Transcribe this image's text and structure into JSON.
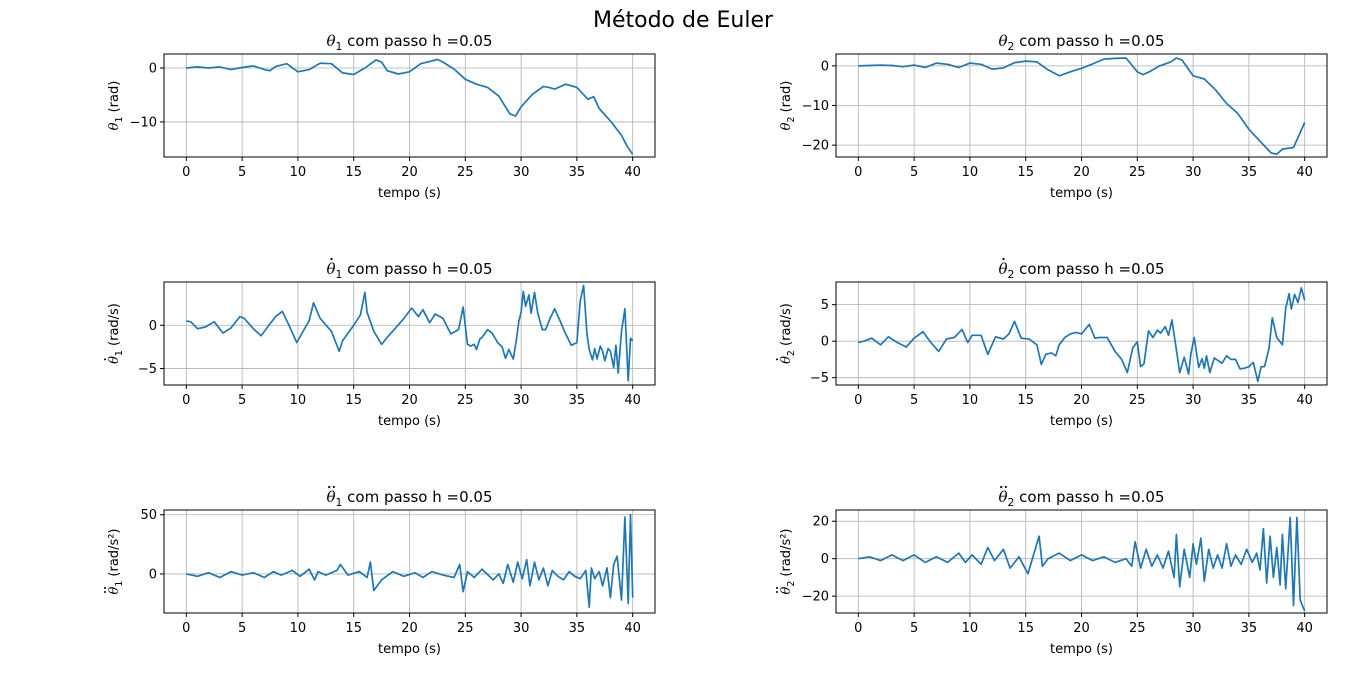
{
  "figure": {
    "suptitle": "Método de Euler"
  },
  "chart_data": [
    {
      "id": "theta1",
      "type": "line",
      "title": {
        "sym": "θ",
        "sub": "1",
        "dots": 0,
        "rest": " com passo h =0.05"
      },
      "ylabel": {
        "sym": "θ",
        "sub": "1",
        "dots": 0,
        "rest": " (rad)"
      },
      "xlabel": "tempo (s)",
      "xlim": [
        -2,
        42
      ],
      "ylim": [
        -16.5,
        2.6
      ],
      "xticks": [
        0,
        5,
        10,
        15,
        20,
        25,
        30,
        35,
        40
      ],
      "yticks": [
        0,
        -10
      ],
      "grid": true,
      "color": "#1f77b4",
      "x": [
        0,
        1,
        2,
        3,
        4,
        5,
        6,
        7,
        7.5,
        8,
        9,
        10,
        11,
        12,
        13,
        14,
        15,
        16,
        17,
        17.5,
        18,
        19,
        20,
        21,
        22,
        22.5,
        23,
        24,
        25,
        26,
        27,
        28,
        29,
        29.5,
        30,
        31,
        32,
        32.5,
        33,
        34,
        35,
        36,
        36.5,
        37,
        38,
        39,
        39.5,
        40
      ],
      "values": [
        0,
        0.2,
        0,
        0.2,
        -0.3,
        0.1,
        0.4,
        -0.3,
        -0.5,
        0.3,
        0.8,
        -0.7,
        -0.3,
        0.9,
        0.8,
        -0.9,
        -1.2,
        0,
        1.5,
        1.1,
        -0.5,
        -1.1,
        -0.7,
        0.8,
        1.3,
        1.6,
        1.1,
        -0.2,
        -2.1,
        -3,
        -3.6,
        -5.2,
        -8.5,
        -8.9,
        -7.2,
        -4.9,
        -3.4,
        -3.6,
        -3.9,
        -3,
        -3.6,
        -5.8,
        -5.3,
        -7.5,
        -9.8,
        -12.5,
        -14.5,
        -16
      ]
    },
    {
      "id": "theta2",
      "type": "line",
      "title": {
        "sym": "θ",
        "sub": "2",
        "dots": 0,
        "rest": " com passo h =0.05"
      },
      "ylabel": {
        "sym": "θ",
        "sub": "2",
        "dots": 0,
        "rest": " (rad)"
      },
      "xlabel": "tempo (s)",
      "xlim": [
        -2,
        42
      ],
      "ylim": [
        -23,
        3
      ],
      "xticks": [
        0,
        5,
        10,
        15,
        20,
        25,
        30,
        35,
        40
      ],
      "yticks": [
        0,
        -10,
        -20
      ],
      "grid": true,
      "color": "#1f77b4",
      "x": [
        0,
        1,
        2,
        3,
        4,
        5,
        6,
        7,
        8,
        9,
        10,
        11,
        12,
        13,
        14,
        15,
        16,
        17,
        18,
        19,
        20,
        21,
        22,
        23,
        24,
        25,
        25.5,
        26,
        27,
        28,
        28.5,
        29,
        30,
        31,
        32,
        33,
        34,
        35,
        36,
        37,
        37.5,
        38,
        39,
        40
      ],
      "values": [
        0,
        0.1,
        0.2,
        0.1,
        -0.2,
        0.2,
        -0.4,
        0.7,
        0.4,
        -0.4,
        0.7,
        0.4,
        -0.8,
        -0.5,
        0.8,
        1.2,
        1,
        -1,
        -2.5,
        -1.5,
        -0.6,
        0.5,
        1.7,
        1.9,
        2,
        -1.5,
        -2.2,
        -1.6,
        0,
        1,
        2,
        1.5,
        -2.5,
        -3.3,
        -6,
        -9.5,
        -12,
        -16,
        -19,
        -22,
        -22.3,
        -21,
        -20.6,
        -14.3
      ]
    },
    {
      "id": "theta1_dot",
      "type": "line",
      "title": {
        "sym": "θ",
        "sub": "1",
        "dots": 1,
        "rest": " com passo h =0.05"
      },
      "ylabel": {
        "sym": "θ",
        "sub": "1",
        "dots": 1,
        "rest": " (rad/s)"
      },
      "xlabel": "tempo (s)",
      "xlim": [
        -2,
        42
      ],
      "ylim": [
        -6.9,
        5.0
      ],
      "xticks": [
        0,
        5,
        10,
        15,
        20,
        25,
        30,
        35,
        40
      ],
      "yticks": [
        0,
        -5
      ],
      "grid": true,
      "color": "#1f77b4",
      "x": [
        0,
        0.4,
        1,
        1.7,
        2.5,
        3.3,
        4,
        4.8,
        5.2,
        6,
        6.7,
        7.4,
        8,
        8.6,
        9.2,
        9.9,
        10.5,
        11,
        11.4,
        12,
        13,
        13.7,
        14,
        15,
        15.6,
        16,
        16.2,
        16.8,
        17.5,
        18,
        18.7,
        19.5,
        20.2,
        20.8,
        21.2,
        21.8,
        22.3,
        23,
        23.7,
        24.4,
        24.8,
        25.2,
        25.5,
        25.8,
        26,
        26.3,
        26.5,
        27,
        27.4,
        27.9,
        28.3,
        28.6,
        28.9,
        29.3,
        29.6,
        29.8,
        30,
        30.2,
        30.4,
        30.7,
        30.9,
        31.2,
        31.5,
        31.9,
        32.2,
        32.6,
        33,
        33.5,
        34,
        34.5,
        35,
        35.3,
        35.6,
        35.9,
        36.1,
        36.4,
        36.6,
        36.8,
        37.1,
        37.3,
        37.5,
        37.8,
        38,
        38.3,
        38.5,
        38.7,
        39,
        39.3,
        39.6,
        39.8,
        40
      ],
      "values": [
        0.5,
        0.4,
        -0.4,
        -0.2,
        0.4,
        -0.9,
        -0.3,
        1.0,
        0.8,
        -0.4,
        -1.2,
        0,
        1.0,
        1.6,
        0,
        -2.0,
        -0.6,
        0.5,
        2.6,
        0.8,
        -0.7,
        -3.0,
        -1.8,
        0,
        1.2,
        3.8,
        1.5,
        -0.7,
        -2.2,
        -1.4,
        -0.4,
        0.8,
        2.0,
        1.0,
        1.8,
        0.3,
        1.3,
        0.8,
        -1.0,
        -0.5,
        2.1,
        -2.2,
        -2.4,
        -2.2,
        -2.8,
        -1.6,
        -1.4,
        -0.5,
        -0.9,
        -2.0,
        -2.5,
        -3.8,
        -2.8,
        -3.9,
        -1.5,
        0.5,
        1.5,
        3.9,
        2.2,
        3.5,
        1.4,
        3.8,
        1.4,
        -0.5,
        -0.5,
        0.8,
        1.9,
        0.5,
        -1.0,
        -2.3,
        -2.0,
        2.8,
        4.6,
        -0.9,
        -2.8,
        -4.0,
        -2.7,
        -3.9,
        -2.4,
        -3.0,
        -4.1,
        -2.7,
        -3.0,
        -4.9,
        -2.3,
        -5.5,
        -0.7,
        1.9,
        -6.4,
        -1.5,
        -1.8
      ]
    },
    {
      "id": "theta2_dot",
      "type": "line",
      "title": {
        "sym": "θ",
        "sub": "2",
        "dots": 1,
        "rest": " com passo h =0.05"
      },
      "ylabel": {
        "sym": "θ",
        "sub": "2",
        "dots": 1,
        "rest": " (rad/s)"
      },
      "xlabel": "tempo (s)",
      "xlim": [
        -2,
        42
      ],
      "ylim": [
        -6.0,
        8.1
      ],
      "xticks": [
        0,
        5,
        10,
        15,
        20,
        25,
        30,
        35,
        40
      ],
      "yticks": [
        5,
        0,
        -5
      ],
      "grid": true,
      "color": "#1f77b4",
      "x": [
        0,
        0.5,
        1.2,
        2,
        2.7,
        3.5,
        4.3,
        5,
        5.8,
        6.5,
        7.2,
        7.9,
        8.6,
        9.3,
        9.8,
        10.2,
        11,
        11.6,
        12.3,
        13,
        13.5,
        14,
        14.6,
        15.3,
        16,
        16.4,
        16.8,
        17.3,
        17.7,
        18,
        18.5,
        19,
        19.5,
        20,
        20.7,
        21.2,
        21.6,
        22.3,
        23,
        23.6,
        24.1,
        24.6,
        25,
        25.3,
        25.6,
        26,
        26.4,
        26.8,
        27.1,
        27.5,
        27.8,
        28.1,
        28.5,
        28.8,
        29.2,
        29.6,
        29.8,
        30.1,
        30.5,
        30.8,
        31,
        31.2,
        31.5,
        31.9,
        32.2,
        32.6,
        33,
        33.4,
        33.8,
        34.2,
        34.6,
        35,
        35.4,
        35.8,
        36.1,
        36.4,
        36.8,
        37.1,
        37.5,
        38,
        38.3,
        38.6,
        38.8,
        39.1,
        39.4,
        39.7,
        40
      ],
      "values": [
        -0.2,
        0,
        0.4,
        -0.5,
        0.6,
        -0.2,
        -0.8,
        0.4,
        1.3,
        -0.2,
        -1.4,
        0.3,
        0.5,
        1.6,
        -0.2,
        0.8,
        0.8,
        -1.8,
        0.6,
        0.3,
        1.0,
        2.7,
        0.4,
        0.3,
        -0.5,
        -3.2,
        -1.8,
        -1.6,
        -2.0,
        -0.5,
        0.5,
        1.0,
        1.2,
        1.0,
        2.3,
        0.4,
        0.5,
        0.5,
        -1.4,
        -2.5,
        -4.3,
        -0.9,
        -0.1,
        -3.5,
        -3.1,
        1.4,
        0.5,
        1.5,
        1.1,
        2.0,
        0.8,
        2.9,
        -1.2,
        -4.3,
        -2.2,
        -4.5,
        -1.7,
        0.5,
        -3.6,
        -2.4,
        -3.7,
        -2.0,
        -4.3,
        -2.3,
        -2.6,
        -3.0,
        -2.0,
        -2.5,
        -2.5,
        -3.8,
        -3.7,
        -3.5,
        -2.9,
        -5.5,
        -3.5,
        -3.5,
        -1.0,
        3.2,
        0.5,
        -0.5,
        4.5,
        6.5,
        4.4,
        6.4,
        5.3,
        7.3,
        5.6
      ]
    },
    {
      "id": "theta1_ddot",
      "type": "line",
      "title": {
        "sym": "θ",
        "sub": "1",
        "dots": 2,
        "rest": " com passo h =0.05"
      },
      "ylabel": {
        "sym": "θ",
        "sub": "1",
        "dots": 2,
        "rest": " (rad/s²)"
      },
      "xlabel": "tempo (s)",
      "xlim": [
        -2,
        42
      ],
      "ylim": [
        -33,
        54
      ],
      "xticks": [
        0,
        5,
        10,
        15,
        20,
        25,
        30,
        35,
        40
      ],
      "yticks": [
        50,
        0
      ],
      "grid": true,
      "color": "#1f77b4",
      "x": [
        0,
        1,
        2,
        3,
        4,
        5,
        6,
        7,
        7.8,
        8.5,
        9.5,
        10.2,
        11,
        11.5,
        11.8,
        12.5,
        13.5,
        13.8,
        14.5,
        15.5,
        16.2,
        16.5,
        16.8,
        17.5,
        18.5,
        19.5,
        20.5,
        21.2,
        22,
        23,
        24,
        24.5,
        24.8,
        25.2,
        25.8,
        26.5,
        27.5,
        28,
        28.4,
        28.8,
        29.3,
        29.7,
        30.1,
        30.5,
        30.8,
        31.2,
        31.6,
        32,
        32.4,
        32.8,
        33.3,
        33.8,
        34.3,
        34.8,
        35.3,
        35.8,
        36.1,
        36.3,
        36.6,
        37,
        37.3,
        37.7,
        38,
        38.3,
        38.6,
        39,
        39.3,
        39.6,
        39.8,
        40
      ],
      "values": [
        0,
        -2,
        1,
        -3,
        2,
        -1,
        1,
        -3,
        2,
        -1,
        3,
        -2,
        4,
        -5,
        2,
        -1,
        3,
        8,
        -1,
        2,
        -3,
        10,
        -14,
        -5,
        2,
        -2,
        1,
        -3,
        2,
        -1,
        -3,
        8,
        -15,
        2,
        -3,
        4,
        -5,
        0,
        -8,
        8,
        -7,
        10,
        -4,
        12,
        -10,
        10,
        -5,
        5,
        -10,
        3,
        -2,
        -5,
        2,
        -2,
        -4,
        3,
        -28,
        5,
        -4,
        2,
        -10,
        5,
        -20,
        8,
        15,
        -22,
        48,
        -25,
        50,
        -20
      ]
    },
    {
      "id": "theta2_ddot",
      "type": "line",
      "title": {
        "sym": "θ",
        "sub": "2",
        "dots": 2,
        "rest": " com passo h =0.05"
      },
      "ylabel": {
        "sym": "θ",
        "sub": "2",
        "dots": 2,
        "rest": " (rad/s²)"
      },
      "xlabel": "tempo (s)",
      "xlim": [
        -2,
        42
      ],
      "ylim": [
        -29,
        26
      ],
      "xticks": [
        0,
        5,
        10,
        15,
        20,
        25,
        30,
        35,
        40
      ],
      "yticks": [
        20,
        0,
        -20
      ],
      "grid": true,
      "color": "#1f77b4",
      "x": [
        0,
        1,
        2,
        3,
        4,
        5,
        6,
        7,
        8,
        9,
        9.6,
        10.2,
        11,
        11.6,
        12.2,
        13,
        13.6,
        14.4,
        15.2,
        16.2,
        16.5,
        17,
        18,
        19,
        20,
        21,
        22,
        23,
        24,
        24.5,
        24.8,
        25.3,
        25.8,
        26.3,
        26.8,
        27.3,
        27.8,
        28.3,
        28.5,
        28.8,
        29.2,
        29.7,
        30,
        30.3,
        30.7,
        31,
        31.4,
        31.8,
        32.2,
        32.6,
        33,
        33.4,
        33.8,
        34.3,
        34.8,
        35.3,
        35.7,
        36,
        36.3,
        36.6,
        36.9,
        37.2,
        37.5,
        37.8,
        38,
        38.3,
        38.7,
        39,
        39.3,
        39.6,
        40
      ],
      "values": [
        0,
        1,
        -1,
        2,
        -1,
        2,
        -2,
        1,
        -2,
        3,
        -2,
        2,
        -3,
        6,
        -1,
        5,
        -5,
        1,
        -8,
        12,
        -4,
        0,
        3,
        -1,
        2,
        -1,
        1,
        -2,
        0,
        -4,
        9,
        -5,
        5,
        -4,
        2,
        -5,
        4,
        -10,
        13,
        -15,
        5,
        -10,
        8,
        -3,
        11,
        -12,
        5,
        -5,
        2,
        -5,
        8,
        -4,
        2,
        -3,
        5,
        -2,
        3,
        -6,
        16,
        -13,
        12,
        -10,
        6,
        -14,
        13,
        -16,
        22,
        -25,
        22,
        -22,
        -28
      ]
    }
  ]
}
